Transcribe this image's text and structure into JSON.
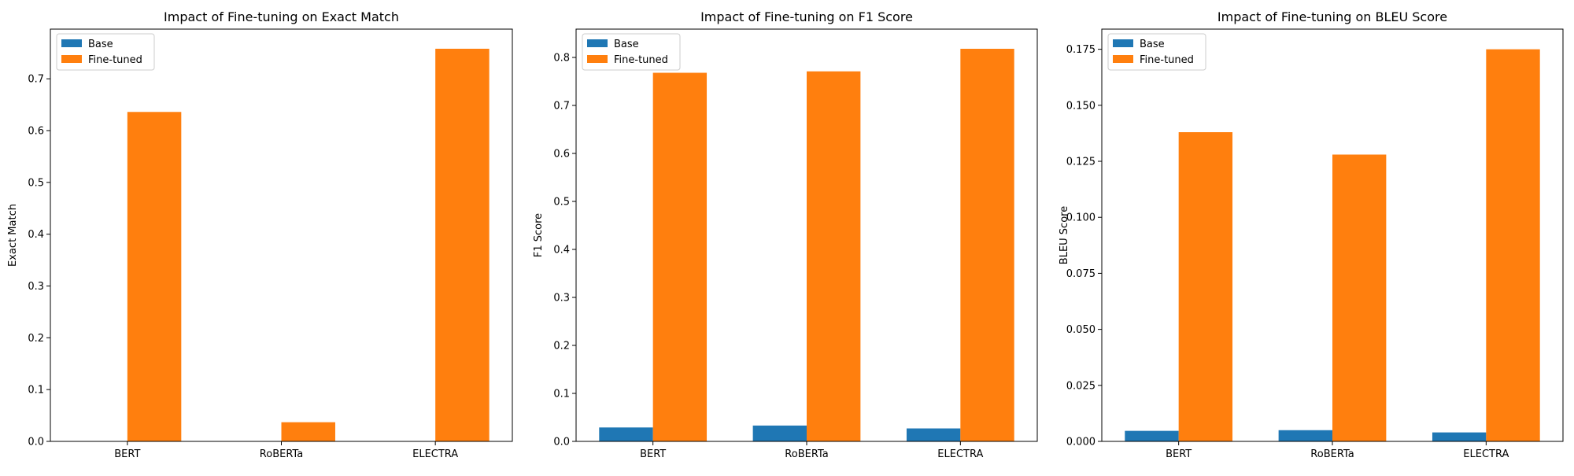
{
  "colors": {
    "base": "#1f77b4",
    "finetuned": "#ff7f0e"
  },
  "chart_data": [
    {
      "type": "bar",
      "title": "Impact of Fine-tuning on Exact Match",
      "xlabel": "",
      "ylabel": "Exact Match",
      "categories": [
        "BERT",
        "RoBERTa",
        "ELECTRA"
      ],
      "series": [
        {
          "name": "Base",
          "values": [
            0.0,
            0.0,
            0.0
          ]
        },
        {
          "name": "Fine-tuned",
          "values": [
            0.636,
            0.037,
            0.758
          ]
        }
      ],
      "ylim": [
        0,
        0.7959
      ],
      "yticks": [
        0.0,
        0.1,
        0.2,
        0.3,
        0.4,
        0.5,
        0.6,
        0.7
      ],
      "ytick_labels": [
        "0.0",
        "0.1",
        "0.2",
        "0.3",
        "0.4",
        "0.5",
        "0.6",
        "0.7"
      ],
      "legend": "upper-left",
      "grid": false
    },
    {
      "type": "bar",
      "title": "Impact of Fine-tuning on F1 Score",
      "xlabel": "",
      "ylabel": "F1 Score",
      "categories": [
        "BERT",
        "RoBERTa",
        "ELECTRA"
      ],
      "series": [
        {
          "name": "Base",
          "values": [
            0.029,
            0.033,
            0.027
          ]
        },
        {
          "name": "Fine-tuned",
          "values": [
            0.768,
            0.771,
            0.818
          ]
        }
      ],
      "ylim": [
        0,
        0.859
      ],
      "yticks": [
        0.0,
        0.1,
        0.2,
        0.3,
        0.4,
        0.5,
        0.6,
        0.7,
        0.8
      ],
      "ytick_labels": [
        "0.0",
        "0.1",
        "0.2",
        "0.3",
        "0.4",
        "0.5",
        "0.6",
        "0.7",
        "0.8"
      ],
      "legend": "upper-left",
      "grid": false
    },
    {
      "type": "bar",
      "title": "Impact of Fine-tuning on BLEU Score",
      "xlabel": "",
      "ylabel": "BLEU Score",
      "categories": [
        "BERT",
        "RoBERTa",
        "ELECTRA"
      ],
      "series": [
        {
          "name": "Base",
          "values": [
            0.0047,
            0.005,
            0.004
          ]
        },
        {
          "name": "Fine-tuned",
          "values": [
            0.138,
            0.128,
            0.175
          ]
        }
      ],
      "ylim": [
        0,
        0.184
      ],
      "yticks": [
        0.0,
        0.025,
        0.05,
        0.075,
        0.1,
        0.125,
        0.15,
        0.175
      ],
      "ytick_labels": [
        "0.000",
        "0.025",
        "0.050",
        "0.075",
        "0.100",
        "0.125",
        "0.150",
        "0.175"
      ],
      "legend": "upper-left",
      "grid": false
    }
  ]
}
